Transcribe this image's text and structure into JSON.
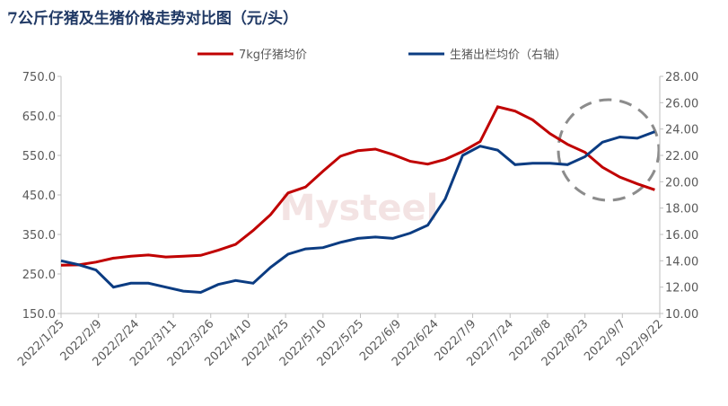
{
  "chart_data": {
    "type": "line",
    "title": "7公斤仔猪及生猪价格走势对比图（元/头）",
    "x": [
      "2022/1/25",
      "2022/2/1",
      "2022/2/8",
      "2022/2/15",
      "2022/2/22",
      "2022/3/1",
      "2022/3/8",
      "2022/3/15",
      "2022/3/22",
      "2022/3/29",
      "2022/4/5",
      "2022/4/12",
      "2022/4/19",
      "2022/4/26",
      "2022/5/3",
      "2022/5/10",
      "2022/5/17",
      "2022/5/24",
      "2022/5/31",
      "2022/6/7",
      "2022/6/14",
      "2022/6/21",
      "2022/6/28",
      "2022/7/5",
      "2022/7/12",
      "2022/7/19",
      "2022/7/26",
      "2022/8/2",
      "2022/8/9",
      "2022/8/16",
      "2022/8/23",
      "2022/8/30",
      "2022/9/6",
      "2022/9/13",
      "2022/9/20"
    ],
    "series": [
      {
        "name": "7kg仔猪均价",
        "color": "#c00000",
        "values": [
          272,
          273,
          280,
          290,
          295,
          298,
          293,
          295,
          297,
          310,
          325,
          360,
          400,
          455,
          470,
          510,
          548,
          562,
          566,
          552,
          535,
          528,
          540,
          560,
          585,
          673,
          662,
          640,
          605,
          578,
          558,
          520,
          495,
          478,
          463
        ]
      },
      {
        "name": "生猪出栏均价（右轴）",
        "color": "#0b3c82",
        "axis": "y2",
        "values": [
          14.0,
          13.7,
          13.3,
          12.0,
          12.3,
          12.3,
          12.0,
          11.7,
          11.6,
          12.2,
          12.5,
          12.3,
          13.5,
          14.5,
          14.9,
          15.0,
          15.4,
          15.7,
          15.8,
          15.7,
          16.1,
          16.7,
          18.7,
          22.0,
          22.7,
          22.4,
          21.3,
          21.4,
          21.4,
          21.3,
          21.9,
          23.0,
          23.4,
          23.3,
          23.8
        ]
      }
    ],
    "xlim": [
      "2022/1/25",
      "2022/9/22"
    ],
    "xticks": [
      "2022/1/25",
      "2022/2/9",
      "2022/2/24",
      "2022/3/11",
      "2022/3/26",
      "2022/4/10",
      "2022/4/25",
      "2022/5/10",
      "2022/5/25",
      "2022/6/9",
      "2022/6/24",
      "2022/7/9",
      "2022/7/24",
      "2022/8/8",
      "2022/8/23",
      "2022/9/7",
      "2022/9/22"
    ],
    "ylim": [
      150,
      750
    ],
    "yticks": [
      {
        "value": 150,
        "label": "150.0"
      },
      {
        "value": 250,
        "label": "250.0"
      },
      {
        "value": 350,
        "label": "350.0"
      },
      {
        "value": 450,
        "label": "450.0"
      },
      {
        "value": 550,
        "label": "550.0"
      },
      {
        "value": 650,
        "label": "650.0"
      },
      {
        "value": 750,
        "label": "750.0"
      }
    ],
    "y2lim": [
      10,
      28
    ],
    "y2ticks": [
      {
        "value": 10,
        "label": "10.00"
      },
      {
        "value": 12,
        "label": "12.00"
      },
      {
        "value": 14,
        "label": "14.00"
      },
      {
        "value": 16,
        "label": "16.00"
      },
      {
        "value": 18,
        "label": "18.00"
      },
      {
        "value": 20,
        "label": "20.00"
      },
      {
        "value": 22,
        "label": "22.00"
      },
      {
        "value": 24,
        "label": "24.00"
      },
      {
        "value": 26,
        "label": "26.00"
      },
      {
        "value": 28,
        "label": "28.00"
      }
    ],
    "legend": "top"
  }
}
